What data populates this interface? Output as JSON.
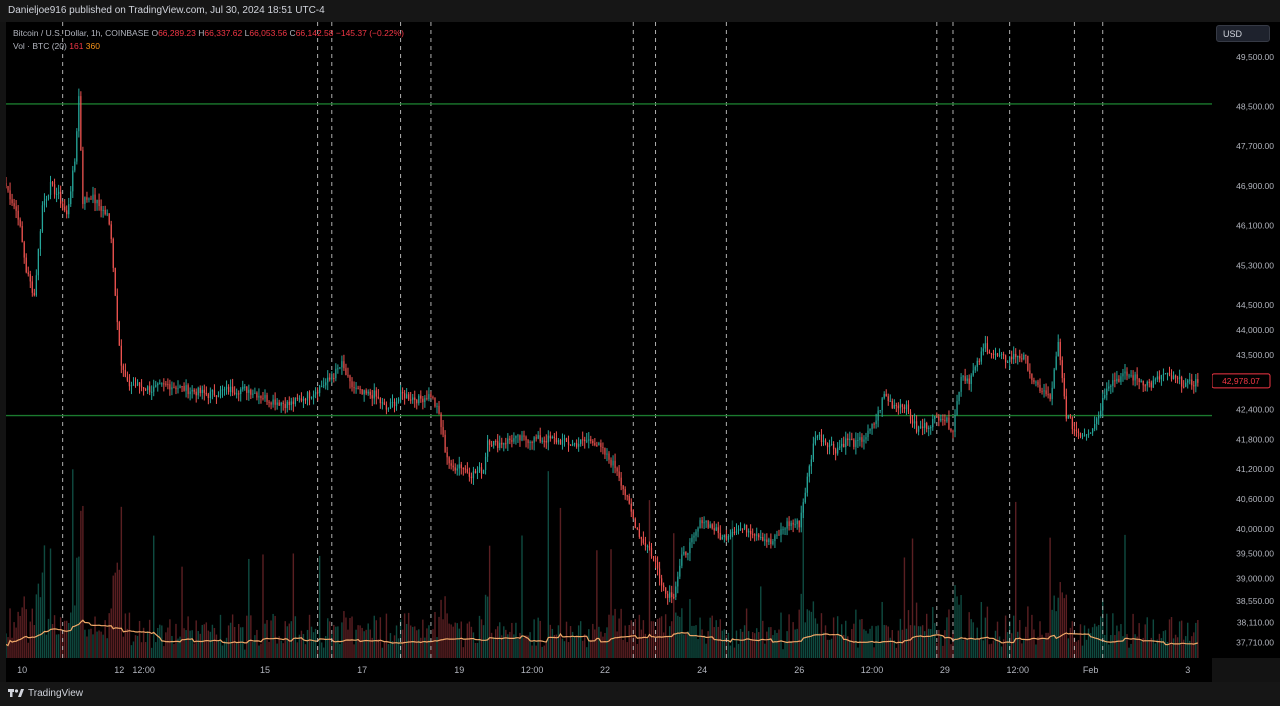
{
  "header": {
    "published_text": "Danieljoe916 published on TradingView.com, Jul 30, 2024 18:51 UTC-4"
  },
  "legend": {
    "symbol": "Bitcoin / U.S. Dollar, 1h, COINBASE",
    "open_label": "O",
    "open": "66,289.23",
    "high_label": "H",
    "high": "66,337.62",
    "low_label": "L",
    "low": "66,053.56",
    "close_label": "C",
    "close": "66,142.58",
    "change": "−145.37 (−0.22%)",
    "vol_label": "Vol · BTC (20)",
    "vol_value_1": "161",
    "vol_value_2": "360"
  },
  "currency_button": "USD",
  "footer": {
    "brand": "TradingView"
  },
  "colors": {
    "up": "#26a69a",
    "down": "#ef5350",
    "hline": "#1b7a2e",
    "ma": "#f0a868",
    "current_price_bg": "#f23645"
  },
  "chart_data": {
    "type": "candlestick",
    "interval": "1h",
    "ylim": [
      37400,
      50200
    ],
    "price_ticks": [
      49500,
      48500,
      47700,
      46900,
      46100,
      45300,
      44500,
      44000,
      43500,
      42400,
      41800,
      41200,
      40600,
      40000,
      39500,
      39000,
      38550,
      38110,
      37710
    ],
    "price_tick_labels": [
      "49,500.00",
      "48,500.00",
      "47,700.00",
      "46,900.00",
      "46,100.00",
      "45,300.00",
      "44,500.00",
      "44,000.00",
      "43,500.00",
      "42,400.00",
      "41,800.00",
      "41,200.00",
      "40,600.00",
      "40,000.00",
      "39,500.00",
      "39,000.00",
      "38,550.00",
      "38,110.00",
      "37,710.00"
    ],
    "current_price": 42978.07,
    "current_price_label": "42,978.07",
    "time_labels": [
      {
        "label": "10",
        "t": 8
      },
      {
        "label": "12",
        "t": 56
      },
      {
        "label": "12:00",
        "t": 68
      },
      {
        "label": "15",
        "t": 128
      },
      {
        "label": "17",
        "t": 176
      },
      {
        "label": "19",
        "t": 224
      },
      {
        "label": "12:00",
        "t": 260
      },
      {
        "label": "22",
        "t": 296
      },
      {
        "label": "24",
        "t": 344
      },
      {
        "label": "26",
        "t": 392
      },
      {
        "label": "12:00",
        "t": 428
      },
      {
        "label": "29",
        "t": 464
      },
      {
        "label": "12:00",
        "t": 500
      },
      {
        "label": "Feb",
        "t": 536
      },
      {
        "label": "3",
        "t": 584
      }
    ],
    "horizontal_levels": [
      48550,
      42280
    ],
    "vertical_markers_t": [
      28,
      154,
      161,
      195,
      210,
      310,
      321,
      356,
      460,
      468,
      496,
      528,
      542
    ],
    "path_knots": [
      [
        0,
        46900
      ],
      [
        6,
        46300
      ],
      [
        10,
        45200
      ],
      [
        14,
        44700
      ],
      [
        18,
        46500
      ],
      [
        22,
        46900
      ],
      [
        26,
        46700
      ],
      [
        30,
        46300
      ],
      [
        34,
        47400
      ],
      [
        36,
        48700
      ],
      [
        38,
        46600
      ],
      [
        42,
        46700
      ],
      [
        46,
        46500
      ],
      [
        50,
        46300
      ],
      [
        52,
        45900
      ],
      [
        54,
        44700
      ],
      [
        57,
        43300
      ],
      [
        60,
        42900
      ],
      [
        64,
        42900
      ],
      [
        72,
        42800
      ],
      [
        80,
        42900
      ],
      [
        90,
        42800
      ],
      [
        100,
        42700
      ],
      [
        110,
        42800
      ],
      [
        120,
        42800
      ],
      [
        130,
        42600
      ],
      [
        140,
        42500
      ],
      [
        150,
        42700
      ],
      [
        160,
        43000
      ],
      [
        166,
        43300
      ],
      [
        170,
        42900
      ],
      [
        176,
        42700
      ],
      [
        182,
        42700
      ],
      [
        188,
        42400
      ],
      [
        196,
        42700
      ],
      [
        204,
        42600
      ],
      [
        210,
        42700
      ],
      [
        214,
        42300
      ],
      [
        217,
        41600
      ],
      [
        220,
        41200
      ],
      [
        224,
        41300
      ],
      [
        230,
        41100
      ],
      [
        236,
        41200
      ],
      [
        238,
        41800
      ],
      [
        242,
        41700
      ],
      [
        250,
        41800
      ],
      [
        260,
        41800
      ],
      [
        270,
        41800
      ],
      [
        280,
        41700
      ],
      [
        290,
        41800
      ],
      [
        296,
        41500
      ],
      [
        302,
        41200
      ],
      [
        306,
        40700
      ],
      [
        310,
        40200
      ],
      [
        314,
        39800
      ],
      [
        318,
        39600
      ],
      [
        322,
        39200
      ],
      [
        326,
        38700
      ],
      [
        330,
        38700
      ],
      [
        334,
        39400
      ],
      [
        340,
        39800
      ],
      [
        344,
        40200
      ],
      [
        350,
        40000
      ],
      [
        354,
        39800
      ],
      [
        360,
        40000
      ],
      [
        366,
        40000
      ],
      [
        372,
        39900
      ],
      [
        378,
        39700
      ],
      [
        386,
        40100
      ],
      [
        392,
        40100
      ],
      [
        396,
        41000
      ],
      [
        400,
        41900
      ],
      [
        404,
        41800
      ],
      [
        410,
        41600
      ],
      [
        416,
        41800
      ],
      [
        420,
        41700
      ],
      [
        426,
        41900
      ],
      [
        430,
        42200
      ],
      [
        434,
        42700
      ],
      [
        438,
        42500
      ],
      [
        444,
        42500
      ],
      [
        450,
        42000
      ],
      [
        456,
        42100
      ],
      [
        462,
        42300
      ],
      [
        468,
        42000
      ],
      [
        472,
        43100
      ],
      [
        476,
        43000
      ],
      [
        480,
        43300
      ],
      [
        484,
        43700
      ],
      [
        488,
        43500
      ],
      [
        494,
        43400
      ],
      [
        500,
        43500
      ],
      [
        504,
        43400
      ],
      [
        508,
        42900
      ],
      [
        512,
        42800
      ],
      [
        516,
        42600
      ],
      [
        520,
        43700
      ],
      [
        524,
        42300
      ],
      [
        528,
        42000
      ],
      [
        532,
        41900
      ],
      [
        536,
        42000
      ],
      [
        540,
        42300
      ],
      [
        544,
        42900
      ],
      [
        548,
        43000
      ],
      [
        554,
        43100
      ],
      [
        560,
        43000
      ],
      [
        566,
        42900
      ],
      [
        572,
        43100
      ],
      [
        578,
        43000
      ],
      [
        584,
        42900
      ],
      [
        589,
        42978
      ]
    ]
  }
}
